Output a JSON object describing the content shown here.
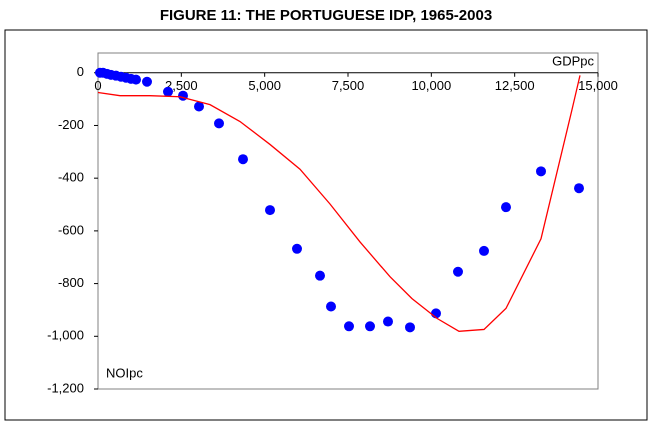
{
  "chart_data": {
    "type": "scatter",
    "title": "FIGURE 11: THE PORTUGUESE IDP, 1965-2003",
    "x_label": "GDPpc",
    "y_label": "NOIpc",
    "xlim": [
      0,
      15000
    ],
    "ylim": [
      -1200,
      75
    ],
    "xticks": [
      0,
      {
        "value": 2500,
        "label": "2,500"
      },
      {
        "value": 5000,
        "label": "5,000"
      },
      {
        "value": 7500,
        "label": "7,500"
      },
      {
        "value": 10000,
        "label": "10,000"
      },
      {
        "value": 12500,
        "label": "12,500"
      },
      {
        "value": 15000,
        "label": "15,000"
      }
    ],
    "yticks": [
      0,
      -200,
      -400,
      -600,
      -800,
      {
        "value": -1000,
        "label": "-1,000"
      },
      {
        "value": -1200,
        "label": "-1,200"
      }
    ],
    "series": [
      {
        "type": "scatter",
        "color": "#0000ff",
        "x": [
          60,
          150,
          270,
          390,
          540,
          690,
          840,
          990,
          1140,
          1470,
          2100,
          2550,
          3030,
          3630,
          4350,
          5160,
          5970,
          6660,
          6990,
          7530,
          8160,
          8700,
          9360,
          10140,
          10800,
          11580,
          12240,
          13290,
          14430
        ],
        "values": [
          0,
          0,
          -4,
          -8,
          -11,
          -15,
          -19,
          -23,
          -26,
          -34,
          -72,
          -87,
          -128,
          -192,
          -328,
          -521,
          -668,
          -770,
          -887,
          -962,
          -962,
          -944,
          -966,
          -913,
          -755,
          -676,
          -510,
          -374,
          -438
        ]
      },
      {
        "type": "line",
        "color": "#ff0000",
        "x": [
          0,
          660,
          1560,
          2460,
          3360,
          4260,
          5160,
          6060,
          6960,
          7860,
          8760,
          9420,
          10170,
          10830,
          11580,
          12240,
          13290,
          14220,
          14460
        ],
        "values": [
          -75,
          -87,
          -87,
          -91,
          -121,
          -185,
          -272,
          -366,
          -498,
          -642,
          -774,
          -857,
          -932,
          -981,
          -974,
          -894,
          -630,
          -140,
          -10
        ]
      }
    ]
  }
}
